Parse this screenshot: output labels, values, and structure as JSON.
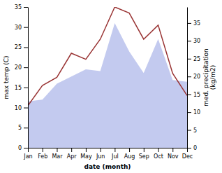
{
  "chart_data": {
    "type": "line",
    "categories": [
      "Jan",
      "Feb",
      "Mar",
      "Apr",
      "May",
      "Jun",
      "Jul",
      "Aug",
      "Sep",
      "Oct",
      "Nov",
      "Dec"
    ],
    "xlabel": "date (month)",
    "ylabel": "max temp (C)",
    "y2label": "med. precipitation\n(kg/m2)",
    "series": [
      {
        "type": "area",
        "axis": "y2",
        "color": "#aab4e8",
        "values": [
          13.0,
          13.5,
          18.0,
          20.0,
          22.0,
          21.5,
          35.0,
          27.0,
          21.0,
          30.5,
          19.0,
          18.5
        ]
      },
      {
        "type": "line",
        "color": "#993333",
        "values": [
          10.5,
          15.5,
          17.5,
          23.5,
          22.0,
          27.0,
          35.0,
          33.5,
          27.0,
          30.5,
          18.5,
          13.0
        ]
      }
    ],
    "ylim": [
      0,
      35
    ],
    "yticks": [
      0,
      5,
      10,
      15,
      20,
      25,
      30,
      35
    ],
    "y2lim": [
      0,
      39.5
    ],
    "y2ticks": [
      0,
      5,
      10,
      15,
      20,
      25,
      30,
      35
    ]
  }
}
